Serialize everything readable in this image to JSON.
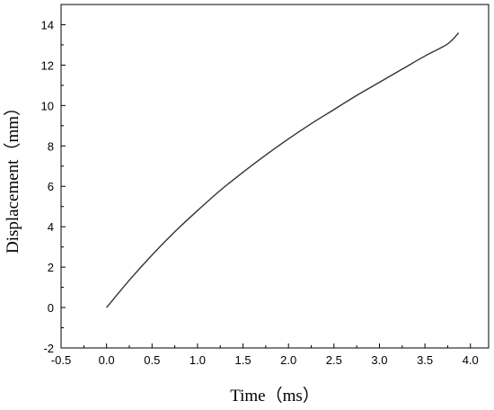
{
  "chart_data": {
    "type": "line",
    "title": "",
    "xlabel": "Time（ms）",
    "ylabel": "Displacement（mm）",
    "xlim": [
      -0.5,
      4.2
    ],
    "ylim": [
      -2,
      15
    ],
    "xticks": [
      -0.5,
      0.0,
      0.5,
      1.0,
      1.5,
      2.0,
      2.5,
      3.0,
      3.5,
      4.0
    ],
    "xtick_labels": [
      "-0.5",
      "0.0",
      "0.5",
      "1.0",
      "1.5",
      "2.0",
      "2.5",
      "3.0",
      "3.5",
      "4.0"
    ],
    "yticks": [
      -2,
      0,
      2,
      4,
      6,
      8,
      10,
      12,
      14
    ],
    "ytick_labels": [
      "-2",
      "0",
      "2",
      "4",
      "6",
      "8",
      "10",
      "12",
      "14"
    ],
    "grid": false,
    "series": [
      {
        "color": "#333333",
        "x": [
          0.0,
          0.25,
          0.5,
          0.75,
          1.0,
          1.25,
          1.5,
          1.75,
          2.0,
          2.25,
          2.5,
          2.75,
          3.0,
          3.25,
          3.5,
          3.75,
          3.87
        ],
        "y": [
          0.0,
          1.35,
          2.6,
          3.75,
          4.8,
          5.8,
          6.7,
          7.55,
          8.35,
          9.1,
          9.8,
          10.5,
          11.15,
          11.8,
          12.45,
          13.05,
          13.6
        ]
      }
    ]
  }
}
